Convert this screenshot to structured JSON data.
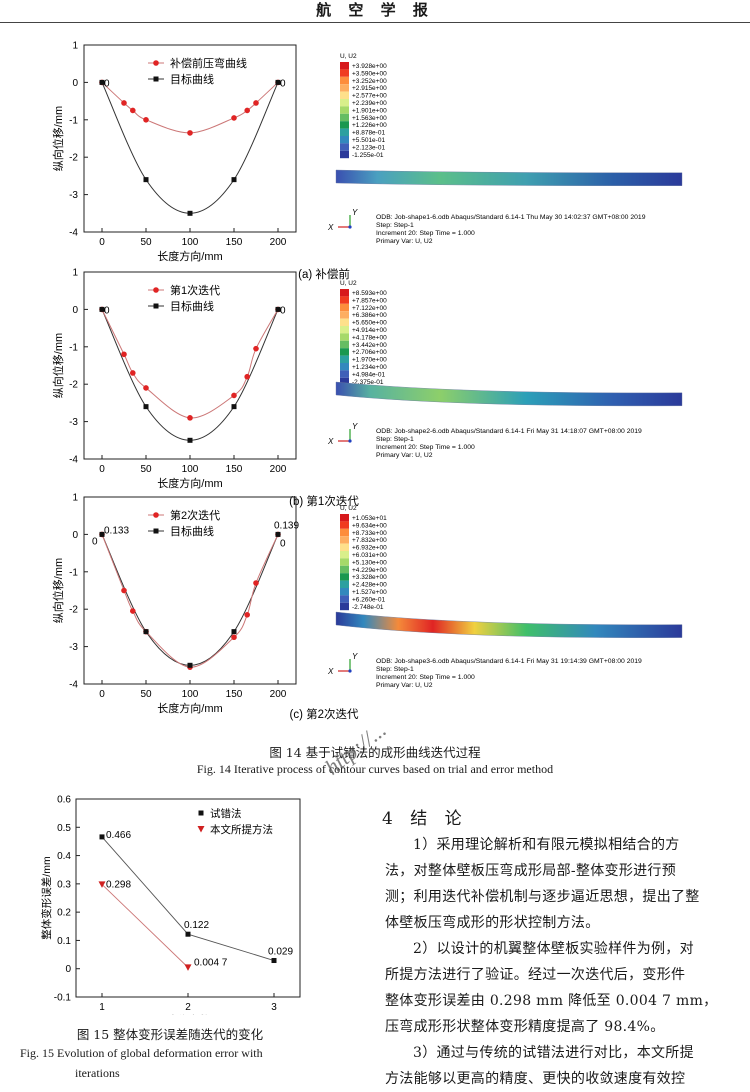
{
  "header": {
    "journal": "航 空 学 报"
  },
  "fig14": {
    "panels": [
      {
        "id": "a",
        "caption": "(a) 补偿前",
        "legend": [
          "补偿前压弯曲线",
          "目标曲线"
        ],
        "red_points": [
          [
            0,
            0
          ],
          [
            25,
            -0.55
          ],
          [
            35,
            -0.75
          ],
          [
            50,
            -1.0
          ],
          [
            100,
            -1.35
          ],
          [
            150,
            -0.95
          ],
          [
            165,
            -0.75
          ],
          [
            175,
            -0.55
          ],
          [
            200,
            0
          ]
        ],
        "black_points": [
          [
            0,
            0
          ],
          [
            50,
            -2.6
          ],
          [
            100,
            -3.5
          ],
          [
            150,
            -2.6
          ],
          [
            200,
            0
          ]
        ],
        "end_labels": [
          "0",
          "0"
        ],
        "fea": {
          "legend_title": "U, U2",
          "values": [
            "+3.928e+00",
            "+3.590e+00",
            "+3.252e+00",
            "+2.915e+00",
            "+2.577e+00",
            "+2.239e+00",
            "+1.901e+00",
            "+1.563e+00",
            "+1.226e+00",
            "+8.878e-01",
            "+5.501e-01",
            "+2.123e-01",
            "-1.255e-01"
          ],
          "info": [
            "ODB: Job-shape1-6.odb    Abaqus/Standard 6.14-1    Thu May 30 14:02:37 GMT+08:00 2019",
            "Step: Step-1",
            "Increment    20: Step Time =      1.000",
            "Primary Var: U, U2"
          ]
        }
      },
      {
        "id": "b",
        "caption": "(b) 第1次迭代",
        "legend": [
          "第1次迭代",
          "目标曲线"
        ],
        "red_points": [
          [
            0,
            0
          ],
          [
            25,
            -1.2
          ],
          [
            35,
            -1.7
          ],
          [
            50,
            -2.1
          ],
          [
            100,
            -2.9
          ],
          [
            150,
            -2.3
          ],
          [
            165,
            -1.8
          ],
          [
            175,
            -1.05
          ],
          [
            200,
            0
          ]
        ],
        "black_points": [
          [
            0,
            0
          ],
          [
            50,
            -2.6
          ],
          [
            100,
            -3.5
          ],
          [
            150,
            -2.6
          ],
          [
            200,
            0
          ]
        ],
        "end_labels": [
          "0",
          "0"
        ],
        "fea": {
          "legend_title": "U, U2",
          "values": [
            "+8.593e+00",
            "+7.857e+00",
            "+7.122e+00",
            "+6.386e+00",
            "+5.650e+00",
            "+4.914e+00",
            "+4.178e+00",
            "+3.442e+00",
            "+2.706e+00",
            "+1.970e+00",
            "+1.234e+00",
            "+4.984e-01",
            "-2.375e-01"
          ],
          "info": [
            "ODB: Job-shape2-6.odb    Abaqus/Standard 6.14-1    Fri May 31 14:18:07 GMT+08:00 2019",
            "Step: Step-1",
            "Increment    20: Step Time =      1.000",
            "Primary Var: U, U2"
          ]
        }
      },
      {
        "id": "c",
        "caption": "(c) 第2次迭代",
        "legend": [
          "第2次迭代",
          "目标曲线"
        ],
        "red_points": [
          [
            0,
            0
          ],
          [
            25,
            -1.5
          ],
          [
            35,
            -2.05
          ],
          [
            50,
            -2.6
          ],
          [
            100,
            -3.55
          ],
          [
            150,
            -2.75
          ],
          [
            165,
            -2.15
          ],
          [
            175,
            -1.3
          ],
          [
            200,
            0
          ]
        ],
        "black_points": [
          [
            0,
            0
          ],
          [
            50,
            -2.6
          ],
          [
            100,
            -3.5
          ],
          [
            150,
            -2.6
          ],
          [
            200,
            0
          ]
        ],
        "end_labels": [
          "0",
          "0.133",
          "0.139",
          "0"
        ],
        "fea": {
          "legend_title": "U, U2",
          "values": [
            "+1.053e+01",
            "+9.634e+00",
            "+8.733e+00",
            "+7.832e+00",
            "+6.932e+00",
            "+6.031e+00",
            "+5.130e+00",
            "+4.229e+00",
            "+3.328e+00",
            "+2.428e+00",
            "+1.527e+00",
            "+6.260e-01",
            "-2.748e-01"
          ],
          "info": [
            "ODB: Job-shape3-6.odb    Abaqus/Standard 6.14-1    Fri May 31 19:14:39 GMT+08:00 2019",
            "Step: Step-1",
            "Increment    20: Step Time =      1.000",
            "Primary Var: U, U2"
          ]
        }
      }
    ],
    "xlabel": "长度方向/mm",
    "ylabel": "纵向位移/mm",
    "xticks": [
      "0",
      "50",
      "100",
      "150",
      "200"
    ],
    "yticks": [
      "1",
      "0",
      "-1",
      "-2",
      "-3",
      "-4"
    ],
    "caption_zh": "图 14    基于试错法的成形曲线迭代过程",
    "caption_en": "Fig. 14    Iterative process of contour curves based on trial and error method",
    "axis_x": "X",
    "axis_y": "Y"
  },
  "chart_data": {
    "type": "line",
    "categories": [
      "1",
      "2",
      "3"
    ],
    "series": [
      {
        "name": "试错法",
        "values": [
          0.466,
          0.122,
          0.029
        ]
      },
      {
        "name": "本文所提方法",
        "values": [
          0.298,
          0.0047,
          null
        ]
      }
    ],
    "data_labels": [
      "0.466",
      "0.122",
      "0.029",
      "0.298",
      "0.004 7"
    ],
    "xlabel": "迭代次数",
    "ylabel": "整体变形误差/mm",
    "yticks": [
      "0.6",
      "0.5",
      "0.4",
      "0.3",
      "0.2",
      "0.1",
      "0",
      "-0.1"
    ],
    "ylim": [
      -0.1,
      0.6
    ]
  },
  "fig15": {
    "caption_zh": "图 15    整体变形误差随迭代的变化",
    "caption_en_1": "Fig. 15    Evolution of global deformation error with",
    "caption_en_2": "iterations"
  },
  "section": {
    "heading": "4  结  论",
    "p1": [
      "1）采用理论解析和有限元模拟相结合的方",
      "法，对整体壁板压弯成形局部-整体变形进行预",
      "测；利用迭代补偿机制与逐步逼近思想，提出了整",
      "体壁板压弯成形的形状控制方法。"
    ],
    "p2": [
      "2）以设计的机翼整体壁板实验样件为例，对",
      "所提方法进行了验证。经过一次迭代后，变形件",
      "整体变形误差由 0.298 mm 降低至 0.004 7 mm，",
      "压弯成形形状整体变形精度提高了 98.4%。"
    ],
    "p3": [
      "3）通过与传统的试错法进行对比，本文所提",
      "方法能够以更高的精度、更快的收敛速度有效控"
    ]
  },
  "watermark": "http://..."
}
